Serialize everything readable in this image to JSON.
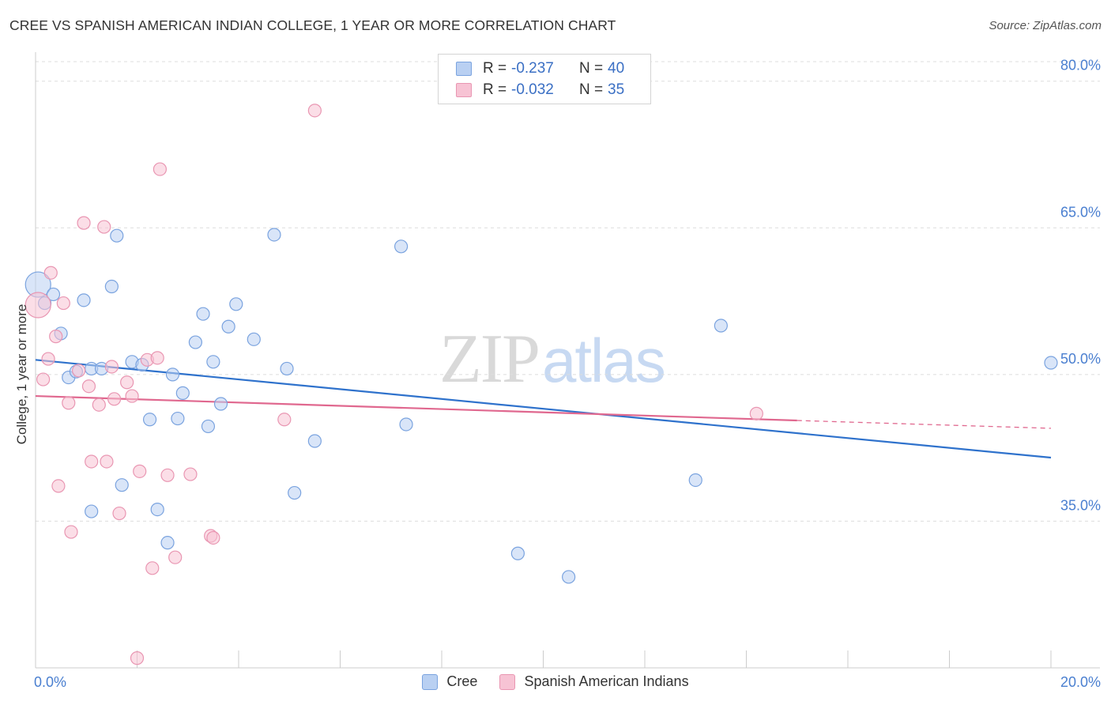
{
  "title": "CREE VS SPANISH AMERICAN INDIAN COLLEGE, 1 YEAR OR MORE CORRELATION CHART",
  "source": "Source: ZipAtlas.com",
  "watermark": {
    "zip": "ZIP",
    "atlas": "atlas"
  },
  "legend": {
    "rows": [
      {
        "r_label": "R =",
        "r_value": "-0.237",
        "n_label": "N =",
        "n_value": "40"
      },
      {
        "r_label": "R =",
        "r_value": "-0.032",
        "n_label": "N =",
        "n_value": "35"
      }
    ]
  },
  "bottom_legend": {
    "series1": "Cree",
    "series2": "Spanish American Indians"
  },
  "colors": {
    "cree_fill": "#b9d0f2",
    "cree_stroke": "#7aa3df",
    "cree_line": "#2f72cc",
    "sai_fill": "#f7c3d4",
    "sai_stroke": "#e996b2",
    "sai_line": "#e0688f",
    "axis_text": "#4a7fd0",
    "grid": "#dddddd"
  },
  "chart_data": {
    "type": "scatter",
    "title": "CREE VS SPANISH AMERICAN INDIAN COLLEGE, 1 YEAR OR MORE CORRELATION CHART",
    "xlabel": "",
    "ylabel": "College, 1 year or more",
    "xlim": [
      0,
      20
    ],
    "ylim": [
      20,
      82
    ],
    "x_tick_labels": [
      "0.0%",
      "20.0%"
    ],
    "y_ticks": [
      35,
      50,
      65,
      80
    ],
    "y_tick_labels": [
      "35.0%",
      "50.0%",
      "65.0%",
      "80.0%"
    ],
    "grid": true,
    "legend_position": "top-center",
    "series": [
      {
        "name": "Cree",
        "R": -0.237,
        "N": 40,
        "trend": {
          "x": [
            0,
            20
          ],
          "y": [
            51.5,
            41.5
          ],
          "dashed_from_x": null
        },
        "points": [
          [
            0.05,
            59.2
          ],
          [
            0.18,
            57.3
          ],
          [
            0.35,
            58.2
          ],
          [
            0.5,
            54.2
          ],
          [
            0.65,
            49.7
          ],
          [
            0.8,
            50.3
          ],
          [
            0.95,
            57.6
          ],
          [
            1.1,
            50.6
          ],
          [
            1.3,
            50.6
          ],
          [
            1.5,
            59.0
          ],
          [
            1.6,
            64.2
          ],
          [
            1.7,
            38.7
          ],
          [
            1.9,
            51.3
          ],
          [
            2.1,
            51.0
          ],
          [
            2.25,
            45.4
          ],
          [
            2.4,
            36.2
          ],
          [
            2.6,
            32.8
          ],
          [
            2.7,
            50.0
          ],
          [
            2.8,
            45.5
          ],
          [
            2.9,
            48.1
          ],
          [
            3.15,
            53.3
          ],
          [
            3.3,
            56.2
          ],
          [
            3.4,
            44.7
          ],
          [
            3.5,
            51.3
          ],
          [
            3.65,
            47.0
          ],
          [
            3.8,
            54.9
          ],
          [
            3.95,
            57.2
          ],
          [
            4.3,
            53.6
          ],
          [
            4.7,
            64.3
          ],
          [
            4.95,
            50.6
          ],
          [
            5.1,
            37.9
          ],
          [
            5.5,
            43.2
          ],
          [
            7.2,
            63.1
          ],
          [
            7.3,
            44.9
          ],
          [
            9.5,
            31.7
          ],
          [
            10.5,
            29.3
          ],
          [
            13.0,
            39.2
          ],
          [
            13.5,
            55.0
          ],
          [
            20.0,
            51.2
          ],
          [
            1.1,
            36.0
          ]
        ]
      },
      {
        "name": "Spanish American Indians",
        "R": -0.032,
        "N": 35,
        "trend": {
          "x": [
            0,
            15
          ],
          "y": [
            47.8,
            45.3
          ],
          "dashed_from_x": 15,
          "dashed_to": [
            20,
            44.5
          ]
        },
        "points": [
          [
            0.05,
            57.1
          ],
          [
            0.15,
            49.5
          ],
          [
            0.25,
            51.6
          ],
          [
            0.3,
            60.4
          ],
          [
            0.4,
            53.9
          ],
          [
            0.45,
            38.6
          ],
          [
            0.55,
            57.3
          ],
          [
            0.65,
            47.1
          ],
          [
            0.7,
            33.9
          ],
          [
            0.85,
            50.4
          ],
          [
            0.95,
            65.5
          ],
          [
            1.05,
            48.8
          ],
          [
            1.1,
            41.1
          ],
          [
            1.25,
            46.9
          ],
          [
            1.35,
            65.1
          ],
          [
            1.4,
            41.1
          ],
          [
            1.5,
            50.8
          ],
          [
            1.55,
            47.5
          ],
          [
            1.65,
            35.8
          ],
          [
            1.8,
            49.2
          ],
          [
            1.9,
            47.8
          ],
          [
            2.0,
            21.0
          ],
          [
            2.05,
            40.1
          ],
          [
            2.2,
            51.5
          ],
          [
            2.3,
            30.2
          ],
          [
            2.4,
            51.7
          ],
          [
            2.45,
            71.0
          ],
          [
            2.6,
            39.7
          ],
          [
            2.75,
            31.3
          ],
          [
            3.05,
            39.8
          ],
          [
            3.45,
            33.5
          ],
          [
            3.5,
            33.3
          ],
          [
            4.9,
            45.4
          ],
          [
            5.5,
            77.0
          ],
          [
            14.2,
            46.0
          ]
        ]
      }
    ]
  }
}
